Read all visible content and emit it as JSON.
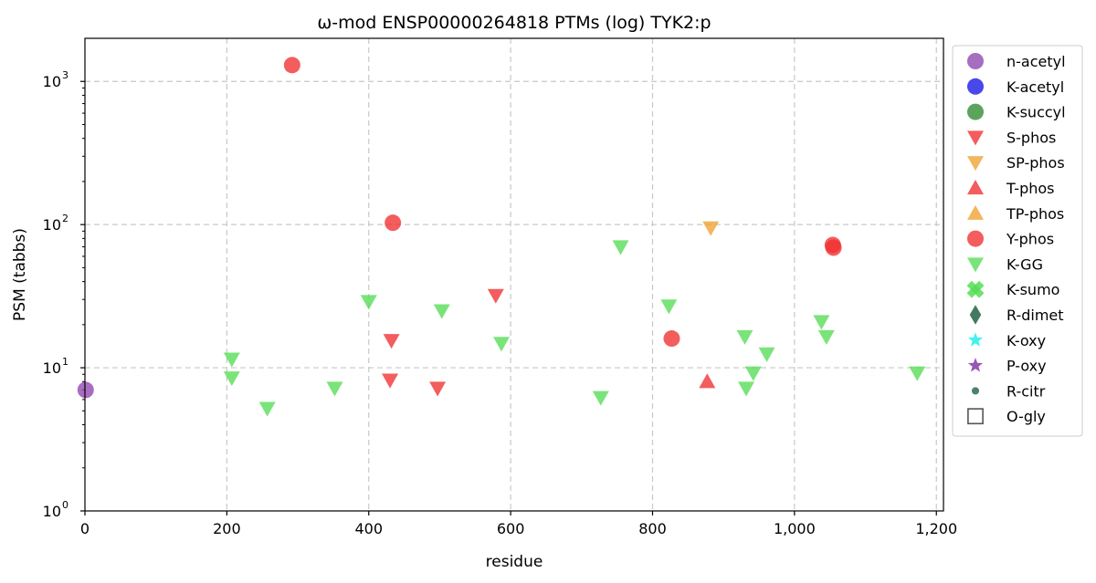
{
  "chart_data": {
    "type": "scatter",
    "title": "ω-mod ENSP00000264818 PTMs (log) TYK2:p",
    "xlabel": "residue",
    "ylabel": "PSM (tabbs)",
    "xlim": [
      0,
      1210
    ],
    "ylim": [
      1,
      2000
    ],
    "yscale": "log",
    "grid": true,
    "legend_position": "outside-right",
    "x_ticks": [
      {
        "value": 0,
        "label": "0"
      },
      {
        "value": 200,
        "label": "200"
      },
      {
        "value": 400,
        "label": "400"
      },
      {
        "value": 600,
        "label": "600"
      },
      {
        "value": 800,
        "label": "800"
      },
      {
        "value": 1000,
        "label": "1,000"
      },
      {
        "value": 1200,
        "label": "1,200"
      }
    ],
    "y_ticks": [
      {
        "value": 1,
        "base": "10",
        "exp": "0"
      },
      {
        "value": 10,
        "base": "10",
        "exp": "1"
      },
      {
        "value": 100,
        "base": "10",
        "exp": "2"
      },
      {
        "value": 1000,
        "base": "10",
        "exp": "3"
      }
    ],
    "series": [
      {
        "name": "n-acetyl",
        "marker": "circle",
        "color": "#8e44ad",
        "points": [
          [
            1,
            7
          ]
        ]
      },
      {
        "name": "K-acetyl",
        "marker": "circle",
        "color": "#1515e6",
        "points": []
      },
      {
        "name": "K-succyl",
        "marker": "circle",
        "color": "#2e8b2e",
        "points": []
      },
      {
        "name": "S-phos",
        "marker": "triangle-down",
        "color": "#f03030",
        "points": [
          [
            432,
            15.5
          ],
          [
            430,
            8.2
          ],
          [
            497,
            7.2
          ],
          [
            579,
            32
          ]
        ]
      },
      {
        "name": "SP-phos",
        "marker": "triangle-down",
        "color": "#f0a030",
        "points": [
          [
            882,
            95
          ]
        ]
      },
      {
        "name": "T-phos",
        "marker": "triangle-up",
        "color": "#f03030",
        "points": [
          [
            877,
            8
          ]
        ]
      },
      {
        "name": "TP-phos",
        "marker": "triangle-up",
        "color": "#f0a030",
        "points": []
      },
      {
        "name": "Y-phos",
        "marker": "circle",
        "color": "#f03030",
        "points": [
          [
            292,
            1300
          ],
          [
            434,
            103
          ],
          [
            827,
            16
          ],
          [
            1054,
            72
          ],
          [
            1055,
            69
          ]
        ]
      },
      {
        "name": "K-GG",
        "marker": "triangle-down",
        "color": "#55dd55",
        "points": [
          [
            207,
            11.5
          ],
          [
            207,
            8.5
          ],
          [
            257,
            5.2
          ],
          [
            352,
            7.2
          ],
          [
            400,
            29
          ],
          [
            503,
            25
          ],
          [
            587,
            14.8
          ],
          [
            727,
            6.2
          ],
          [
            755,
            70
          ],
          [
            823,
            27
          ],
          [
            930,
            16.5
          ],
          [
            932,
            7.2
          ],
          [
            942,
            9.2
          ],
          [
            961,
            12.5
          ],
          [
            1038,
            21
          ],
          [
            1045,
            16.5
          ],
          [
            1173,
            9.2
          ]
        ]
      },
      {
        "name": "K-sumo",
        "marker": "x",
        "color": "#55dd55",
        "points": []
      },
      {
        "name": "R-dimet",
        "marker": "diamond",
        "color": "#2e6b50",
        "points": []
      },
      {
        "name": "K-oxy",
        "marker": "star",
        "color": "#2ff0f0",
        "points": []
      },
      {
        "name": "P-oxy",
        "marker": "star",
        "color": "#8e44ad",
        "points": []
      },
      {
        "name": "R-citr",
        "marker": "dot",
        "color": "#2e6b50",
        "points": []
      },
      {
        "name": "O-gly",
        "marker": "square-open",
        "color": "#555555",
        "points": []
      }
    ]
  }
}
